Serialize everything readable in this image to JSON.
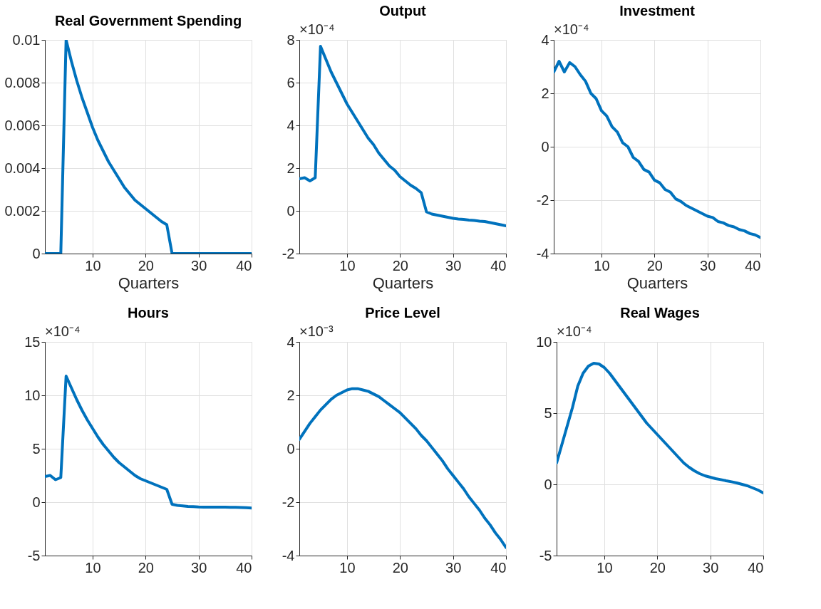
{
  "chart_data": [
    {
      "type": "line",
      "title": "Real Government Spending",
      "xlabel": "Quarters",
      "x": [
        1,
        2,
        3,
        4,
        5,
        6,
        7,
        8,
        9,
        10,
        11,
        12,
        13,
        14,
        15,
        16,
        17,
        18,
        19,
        20,
        21,
        22,
        23,
        24,
        25,
        26,
        27,
        28,
        29,
        30,
        31,
        32,
        33,
        34,
        35,
        36,
        37,
        38,
        39,
        40
      ],
      "series": [
        {
          "color": "#0072bd",
          "values": [
            0,
            0,
            0,
            0,
            0.01,
            0.009,
            0.0081,
            0.0073,
            0.0066,
            0.0059,
            0.0053,
            0.0048,
            0.0043,
            0.0039,
            0.0035,
            0.0031,
            0.0028,
            0.0025,
            0.0023,
            0.0021,
            0.0019,
            0.0017,
            0.0015,
            0.00135,
            0,
            0,
            0,
            0,
            0,
            0,
            0,
            0,
            0,
            0,
            0,
            0,
            0,
            0,
            0,
            0
          ]
        }
      ],
      "xlim": [
        1,
        40
      ],
      "xticks": [
        10,
        20,
        30,
        40
      ],
      "ylim": [
        0,
        0.01
      ],
      "yticks": [
        0,
        0.002,
        0.004,
        0.006,
        0.008,
        0.01
      ],
      "grid": true
    },
    {
      "type": "line",
      "title": "Output",
      "xlabel": "Quarters",
      "annotations": [
        "×10⁻⁴"
      ],
      "x": [
        1,
        2,
        3,
        4,
        5,
        6,
        7,
        8,
        9,
        10,
        11,
        12,
        13,
        14,
        15,
        16,
        17,
        18,
        19,
        20,
        21,
        22,
        23,
        24,
        25,
        26,
        27,
        28,
        29,
        30,
        31,
        32,
        33,
        34,
        35,
        36,
        37,
        38,
        39,
        40
      ],
      "series": [
        {
          "color": "#0072bd",
          "values": [
            1.5,
            1.55,
            1.4,
            1.55,
            7.7,
            7.1,
            6.5,
            6.0,
            5.5,
            5.0,
            4.6,
            4.2,
            3.8,
            3.4,
            3.1,
            2.7,
            2.4,
            2.1,
            1.9,
            1.6,
            1.4,
            1.2,
            1.05,
            0.85,
            -0.05,
            -0.15,
            -0.2,
            -0.25,
            -0.3,
            -0.35,
            -0.38,
            -0.4,
            -0.43,
            -0.45,
            -0.48,
            -0.5,
            -0.55,
            -0.6,
            -0.65,
            -0.7
          ]
        }
      ],
      "xlim": [
        1,
        40
      ],
      "xticks": [
        10,
        20,
        30,
        40
      ],
      "ylim": [
        -2,
        8
      ],
      "yticks": [
        -2,
        0,
        2,
        4,
        6,
        8
      ],
      "grid": true
    },
    {
      "type": "line",
      "title": "Investment",
      "xlabel": "Quarters",
      "annotations": [
        "×10⁻⁴"
      ],
      "x": [
        1,
        2,
        3,
        4,
        5,
        6,
        7,
        8,
        9,
        10,
        11,
        12,
        13,
        14,
        15,
        16,
        17,
        18,
        19,
        20,
        21,
        22,
        23,
        24,
        25,
        26,
        27,
        28,
        29,
        30,
        31,
        32,
        33,
        34,
        35,
        36,
        37,
        38,
        39,
        40
      ],
      "series": [
        {
          "color": "#0072bd",
          "values": [
            2.8,
            3.2,
            2.8,
            3.15,
            3.0,
            2.7,
            2.45,
            2.0,
            1.8,
            1.35,
            1.15,
            0.75,
            0.55,
            0.15,
            0.0,
            -0.4,
            -0.55,
            -0.85,
            -0.95,
            -1.25,
            -1.35,
            -1.6,
            -1.7,
            -1.95,
            -2.05,
            -2.2,
            -2.3,
            -2.4,
            -2.5,
            -2.6,
            -2.65,
            -2.8,
            -2.85,
            -2.95,
            -3.0,
            -3.1,
            -3.15,
            -3.25,
            -3.3,
            -3.4
          ]
        }
      ],
      "xlim": [
        1,
        40
      ],
      "xticks": [
        10,
        20,
        30,
        40
      ],
      "ylim": [
        -4,
        4
      ],
      "yticks": [
        -4,
        -2,
        0,
        2,
        4
      ],
      "grid": true
    },
    {
      "type": "line",
      "title": "Hours",
      "annotations": [
        "×10⁻⁴"
      ],
      "x": [
        1,
        2,
        3,
        4,
        5,
        6,
        7,
        8,
        9,
        10,
        11,
        12,
        13,
        14,
        15,
        16,
        17,
        18,
        19,
        20,
        21,
        22,
        23,
        24,
        25,
        26,
        27,
        28,
        29,
        30,
        31,
        32,
        33,
        34,
        35,
        36,
        37,
        38,
        39,
        40
      ],
      "series": [
        {
          "color": "#0072bd",
          "values": [
            2.4,
            2.5,
            2.1,
            2.3,
            11.8,
            10.7,
            9.6,
            8.6,
            7.7,
            6.9,
            6.1,
            5.4,
            4.8,
            4.2,
            3.7,
            3.3,
            2.9,
            2.5,
            2.2,
            2.0,
            1.8,
            1.6,
            1.4,
            1.2,
            -0.2,
            -0.3,
            -0.35,
            -0.4,
            -0.42,
            -0.45,
            -0.46,
            -0.47,
            -0.47,
            -0.47,
            -0.47,
            -0.48,
            -0.48,
            -0.5,
            -0.52,
            -0.55
          ]
        }
      ],
      "xlim": [
        1,
        40
      ],
      "xticks": [
        10,
        20,
        30,
        40
      ],
      "ylim": [
        -5,
        15
      ],
      "yticks": [
        -5,
        0,
        5,
        10,
        15
      ],
      "grid": true
    },
    {
      "type": "line",
      "title": "Price Level",
      "annotations": [
        "×10⁻³"
      ],
      "x": [
        1,
        2,
        3,
        4,
        5,
        6,
        7,
        8,
        9,
        10,
        11,
        12,
        13,
        14,
        15,
        16,
        17,
        18,
        19,
        20,
        21,
        22,
        23,
        24,
        25,
        26,
        27,
        28,
        29,
        30,
        31,
        32,
        33,
        34,
        35,
        36,
        37,
        38,
        39,
        40
      ],
      "series": [
        {
          "color": "#0072bd",
          "values": [
            0.35,
            0.65,
            0.95,
            1.2,
            1.45,
            1.65,
            1.85,
            2.0,
            2.1,
            2.2,
            2.25,
            2.25,
            2.2,
            2.15,
            2.05,
            1.95,
            1.8,
            1.65,
            1.5,
            1.35,
            1.15,
            0.95,
            0.75,
            0.5,
            0.3,
            0.05,
            -0.2,
            -0.45,
            -0.75,
            -1.0,
            -1.25,
            -1.5,
            -1.8,
            -2.05,
            -2.3,
            -2.6,
            -2.85,
            -3.15,
            -3.4,
            -3.7
          ]
        }
      ],
      "xlim": [
        1,
        40
      ],
      "xticks": [
        10,
        20,
        30,
        40
      ],
      "ylim": [
        -4,
        4
      ],
      "yticks": [
        -4,
        -2,
        0,
        2,
        4
      ],
      "grid": true
    },
    {
      "type": "line",
      "title": "Real Wages",
      "annotations": [
        "×10⁻⁴"
      ],
      "x": [
        1,
        2,
        3,
        4,
        5,
        6,
        7,
        8,
        9,
        10,
        11,
        12,
        13,
        14,
        15,
        16,
        17,
        18,
        19,
        20,
        21,
        22,
        23,
        24,
        25,
        26,
        27,
        28,
        29,
        30,
        31,
        32,
        33,
        34,
        35,
        36,
        37,
        38,
        39,
        40
      ],
      "series": [
        {
          "color": "#0072bd",
          "values": [
            1.5,
            2.8,
            4.1,
            5.4,
            6.9,
            7.8,
            8.3,
            8.5,
            8.45,
            8.2,
            7.8,
            7.3,
            6.8,
            6.3,
            5.8,
            5.3,
            4.8,
            4.3,
            3.9,
            3.5,
            3.1,
            2.7,
            2.3,
            1.9,
            1.5,
            1.2,
            0.95,
            0.75,
            0.6,
            0.5,
            0.4,
            0.33,
            0.25,
            0.18,
            0.1,
            0.0,
            -0.1,
            -0.25,
            -0.4,
            -0.6
          ]
        }
      ],
      "xlim": [
        1,
        40
      ],
      "xticks": [
        10,
        20,
        30,
        40
      ],
      "ylim": [
        -5,
        10
      ],
      "yticks": [
        -5,
        0,
        5,
        10
      ],
      "grid": true
    }
  ]
}
